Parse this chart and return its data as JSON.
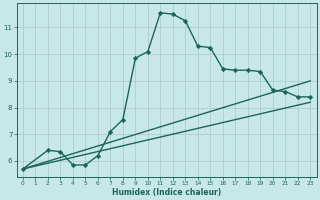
{
  "xlabel": "Humidex (Indice chaleur)",
  "bg_color": "#c8e8e8",
  "grid_color": "#b0cccc",
  "line_color": "#1a6655",
  "xlim": [
    -0.5,
    23.5
  ],
  "ylim": [
    5.4,
    11.9
  ],
  "xticks": [
    0,
    1,
    2,
    3,
    4,
    5,
    6,
    7,
    8,
    9,
    10,
    11,
    12,
    13,
    14,
    15,
    16,
    17,
    18,
    19,
    20,
    21,
    22,
    23
  ],
  "yticks": [
    6,
    7,
    8,
    9,
    10,
    11
  ],
  "curve1_x": [
    0,
    2,
    3,
    4,
    5,
    6,
    7,
    8,
    9,
    10,
    11,
    12,
    13,
    14,
    15,
    16,
    17,
    18,
    19,
    20,
    21,
    22,
    23
  ],
  "curve1_y": [
    5.7,
    6.4,
    6.35,
    5.85,
    5.85,
    6.2,
    7.1,
    7.55,
    9.85,
    10.1,
    11.55,
    11.5,
    11.25,
    10.3,
    10.25,
    9.45,
    9.4,
    9.4,
    9.35,
    8.65,
    8.6,
    8.4,
    8.4
  ],
  "curve2_x": [
    0,
    23
  ],
  "curve2_y": [
    5.7,
    9.0
  ],
  "curve3_x": [
    0,
    23
  ],
  "curve3_y": [
    5.7,
    8.2
  ],
  "marker": "D",
  "marker_size": 2.2,
  "linewidth": 1.0
}
